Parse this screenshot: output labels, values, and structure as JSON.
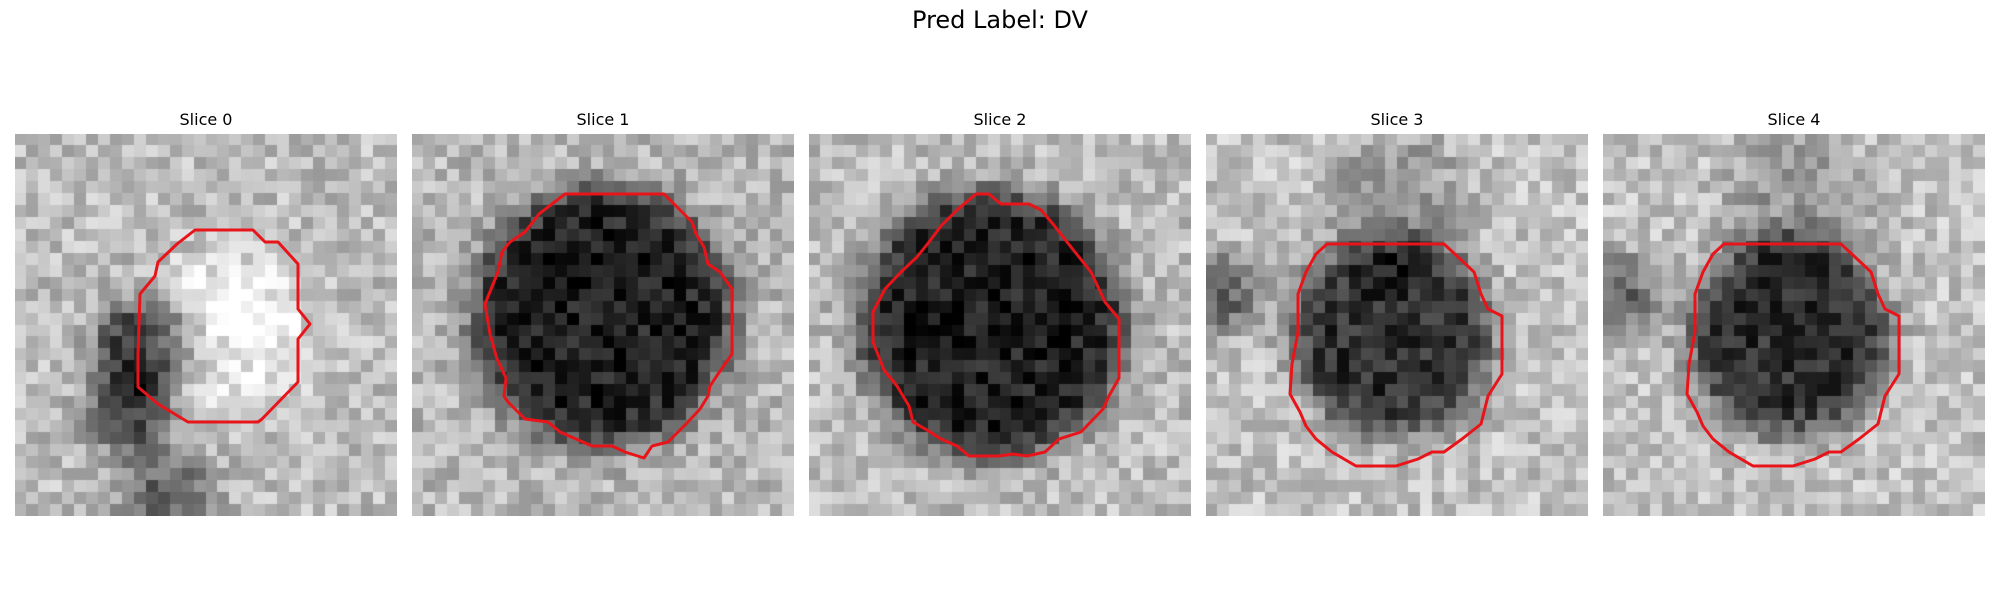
{
  "figure": {
    "suptitle": "Pred Label: DV",
    "contour_color": "#e8141a"
  },
  "slices": [
    {
      "title": "Slice 0"
    },
    {
      "title": "Slice 1"
    },
    {
      "title": "Slice 2"
    },
    {
      "title": "Slice 3"
    },
    {
      "title": "Slice 4"
    }
  ]
}
